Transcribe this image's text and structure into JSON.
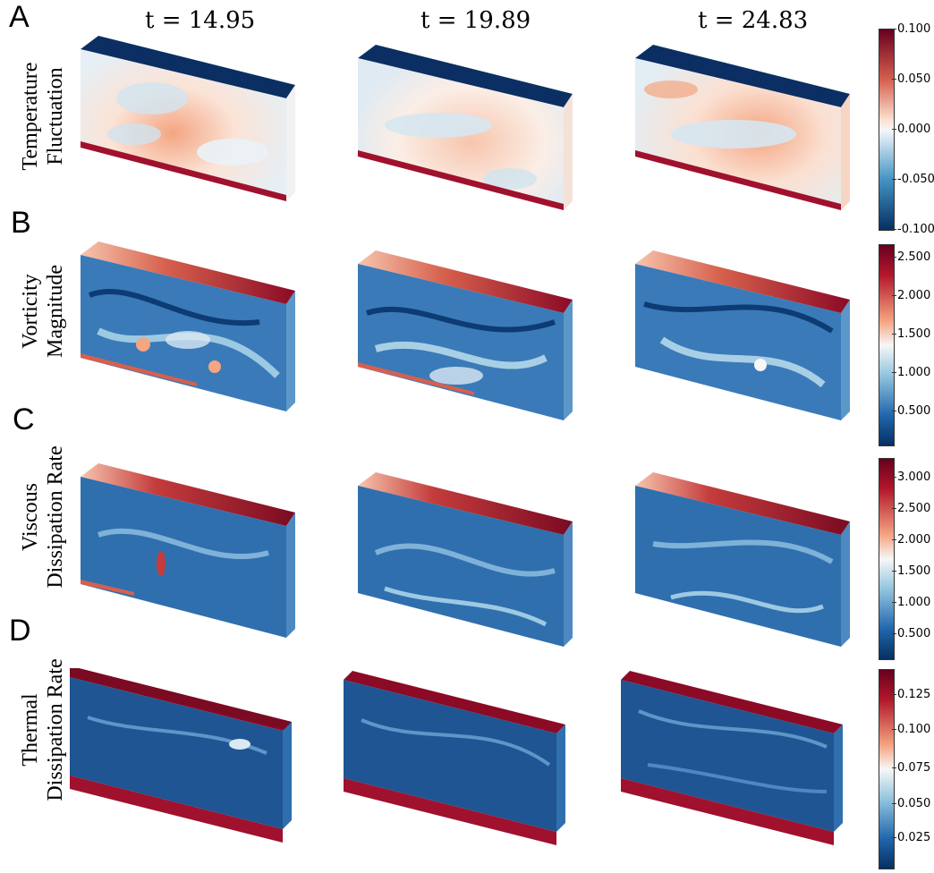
{
  "panel_letters": [
    "A",
    "B",
    "C",
    "D"
  ],
  "times": [
    "t = 14.95",
    "t = 19.89",
    "t = 24.83"
  ],
  "rows": [
    {
      "label_line1": "Temperature",
      "label_line2": "Fluctuation",
      "colorbar_ticks": [
        "0.100",
        "0.050",
        "0.000",
        "-0.050",
        "-0.100"
      ]
    },
    {
      "label_line1": "Vorticity",
      "label_line2": "Magnitude",
      "colorbar_ticks": [
        "2.500",
        "2.000",
        "1.500",
        "1.000",
        "0.500"
      ]
    },
    {
      "label_line1": "Viscous",
      "label_line2": "Dissipation Rate",
      "colorbar_ticks": [
        "3.000",
        "2.500",
        "2.000",
        "1.500",
        "1.000",
        "0.500"
      ]
    },
    {
      "label_line1": "Thermal",
      "label_line2": "Dissipation Rate",
      "colorbar_ticks": [
        "0.125",
        "0.100",
        "0.075",
        "0.050",
        "0.025"
      ]
    }
  ],
  "colormap": {
    "low": "#08306b",
    "mid": "#f7f7f7",
    "high": "#67001f"
  }
}
